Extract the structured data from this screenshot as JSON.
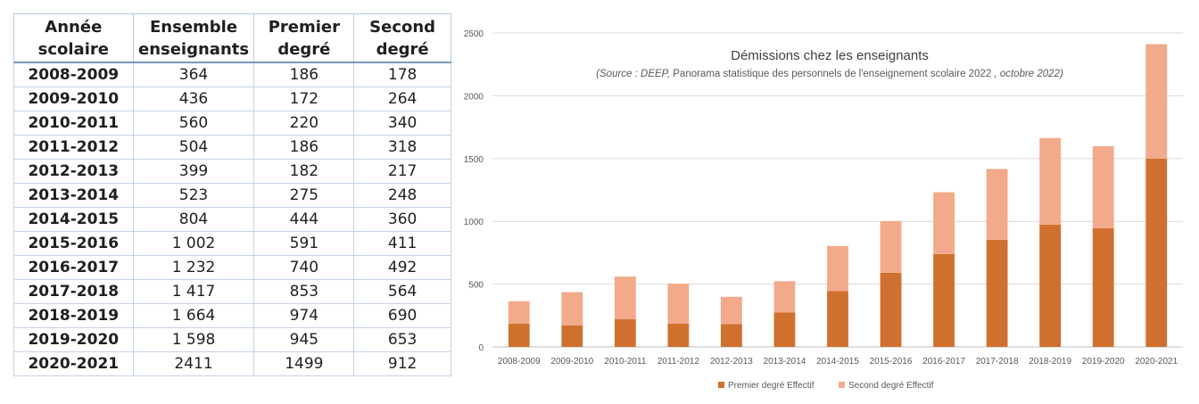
{
  "table": {
    "headers": [
      "Année\nscolaire",
      "Ensemble\nenseignants",
      "Premier\ndegré",
      "Second\ndegré"
    ],
    "rows": [
      [
        "2008-2009",
        "364",
        "186",
        "178"
      ],
      [
        "2009-2010",
        "436",
        "172",
        "264"
      ],
      [
        "2010-2011",
        "560",
        "220",
        "340"
      ],
      [
        "2011-2012",
        "504",
        "186",
        "318"
      ],
      [
        "2012-2013",
        "399",
        "182",
        "217"
      ],
      [
        "2013-2014",
        "523",
        "275",
        "248"
      ],
      [
        "2014-2015",
        "804",
        "444",
        "360"
      ],
      [
        "2015-2016",
        "1 002",
        "591",
        "411"
      ],
      [
        "2016-2017",
        "1 232",
        "740",
        "492"
      ],
      [
        "2017-2018",
        "1 417",
        "853",
        "564"
      ],
      [
        "2018-2019",
        "1 664",
        "974",
        "690"
      ],
      [
        "2019-2020",
        "1 598",
        "945",
        "653"
      ],
      [
        "2020-2021",
        "2411",
        "1499",
        "912"
      ]
    ]
  },
  "chart_data": {
    "type": "bar",
    "stacked": true,
    "title": "Démissions chez les enseignants",
    "subtitle_parts": [
      {
        "text": "(Source : DEEP, ",
        "italic": true
      },
      {
        "text": "Panorama statistique des personnels de l'enseignement scolaire 2022",
        "italic": false
      },
      {
        "text": " , octobre 2022)",
        "italic": true
      }
    ],
    "categories": [
      "2008-2009",
      "2009-2010",
      "2010-2011",
      "2011-2012",
      "2012-2013",
      "2013-2014",
      "2014-2015",
      "2015-2016",
      "2016-2017",
      "2017-2018",
      "2018-2019",
      "2019-2020",
      "2020-2021"
    ],
    "series": [
      {
        "name": "Premier degré Effectif",
        "color": "#d0702e",
        "values": [
          186,
          172,
          220,
          186,
          182,
          275,
          444,
          591,
          740,
          853,
          974,
          945,
          1499
        ]
      },
      {
        "name": "Second degré Effectif",
        "color": "#f2aa8a",
        "values": [
          178,
          264,
          340,
          318,
          217,
          248,
          360,
          411,
          492,
          564,
          690,
          653,
          912
        ]
      }
    ],
    "ylim": [
      0,
      2500
    ],
    "yticks": [
      0,
      500,
      1000,
      1500,
      2000,
      2500
    ],
    "grid": true,
    "legend_position": "bottom"
  }
}
